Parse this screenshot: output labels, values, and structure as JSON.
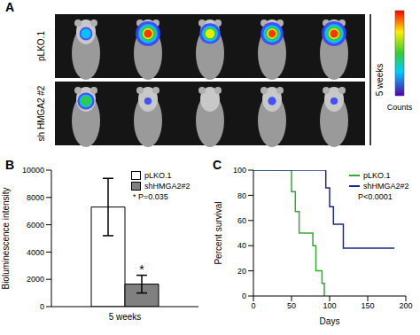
{
  "chart_data": [
    {
      "type": "image",
      "panel": "A",
      "rows": [
        {
          "label": "pLKO.1",
          "signal": [
            0.4,
            1,
            0.8,
            0.9,
            1
          ]
        },
        {
          "label": "sh HMGA2 #2",
          "signal": [
            0.6,
            0.1,
            0,
            0.15,
            0.1
          ]
        }
      ],
      "annotation": "5 weeks",
      "colorbar_label": "Counts"
    },
    {
      "type": "bar",
      "panel": "B",
      "categories": [
        "5 weeks"
      ],
      "series": [
        {
          "name": "pLKO.1",
          "color": "#ffffff",
          "values": [
            7300
          ],
          "errors": [
            2100
          ]
        },
        {
          "name": "shHMGA2#2",
          "color": "#808080",
          "values": [
            1650
          ],
          "errors": [
            650
          ]
        }
      ],
      "ylabel": "Bioluminescence intensity",
      "ylim": [
        0,
        10000
      ],
      "yticks": [
        0,
        2000,
        4000,
        6000,
        8000,
        10000
      ],
      "annotations": [
        {
          "text": "*",
          "series": "shHMGA2#2"
        },
        {
          "text": "* P=0.035"
        }
      ],
      "legend": "top right"
    },
    {
      "type": "line",
      "panel": "C",
      "xlabel": "Days",
      "ylabel": "Percent survival",
      "xlim": [
        0,
        200
      ],
      "xticks": [
        0,
        50,
        100,
        150,
        200
      ],
      "ylim": [
        0,
        100
      ],
      "yticks": [
        0,
        20,
        40,
        60,
        80,
        100
      ],
      "series": [
        {
          "name": "pLKO.1",
          "color": "#33aa33",
          "x": [
            0,
            50,
            55,
            60,
            78,
            82,
            90,
            93
          ],
          "values": [
            100,
            83,
            67,
            50,
            40,
            20,
            10,
            0
          ]
        },
        {
          "name": "shHMGA2#2",
          "color": "#1a2a8a",
          "x": [
            0,
            95,
            100,
            105,
            118,
            185
          ],
          "values": [
            100,
            86,
            71,
            57,
            38,
            38
          ]
        }
      ],
      "line_style": "step",
      "annotations": [
        {
          "text": "P<0.0001"
        }
      ],
      "legend": "top right"
    }
  ]
}
